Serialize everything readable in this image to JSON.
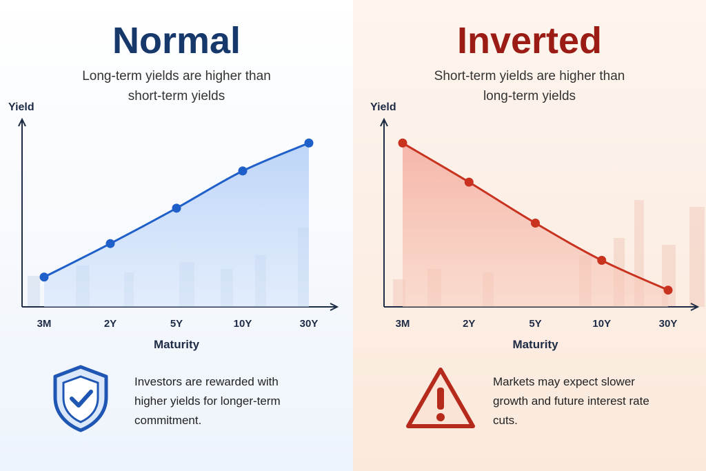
{
  "chart_data": [
    {
      "type": "line",
      "title": "Normal",
      "subtitle": "Long-term yields are higher than short-term yields",
      "y_label": "Yield",
      "x_label": "Maturity",
      "categories": [
        "3M",
        "2Y",
        "5Y",
        "10Y",
        "30Y"
      ],
      "values": [
        16,
        34,
        53,
        73,
        88
      ],
      "color": "#1f5fc9",
      "ylim": [
        0,
        100
      ],
      "note": "Investors are rewarded with higher yields for longer-term commitment."
    },
    {
      "type": "line",
      "title": "Inverted",
      "subtitle": "Short-term yields are higher than long-term yields",
      "y_label": "Yield",
      "x_label": "Maturity",
      "categories": [
        "3M",
        "2Y",
        "5Y",
        "10Y",
        "30Y"
      ],
      "values": [
        88,
        67,
        45,
        25,
        9
      ],
      "color": "#c8321f",
      "ylim": [
        0,
        100
      ],
      "note": "Markets may expect slower growth and future interest rate cuts."
    }
  ]
}
